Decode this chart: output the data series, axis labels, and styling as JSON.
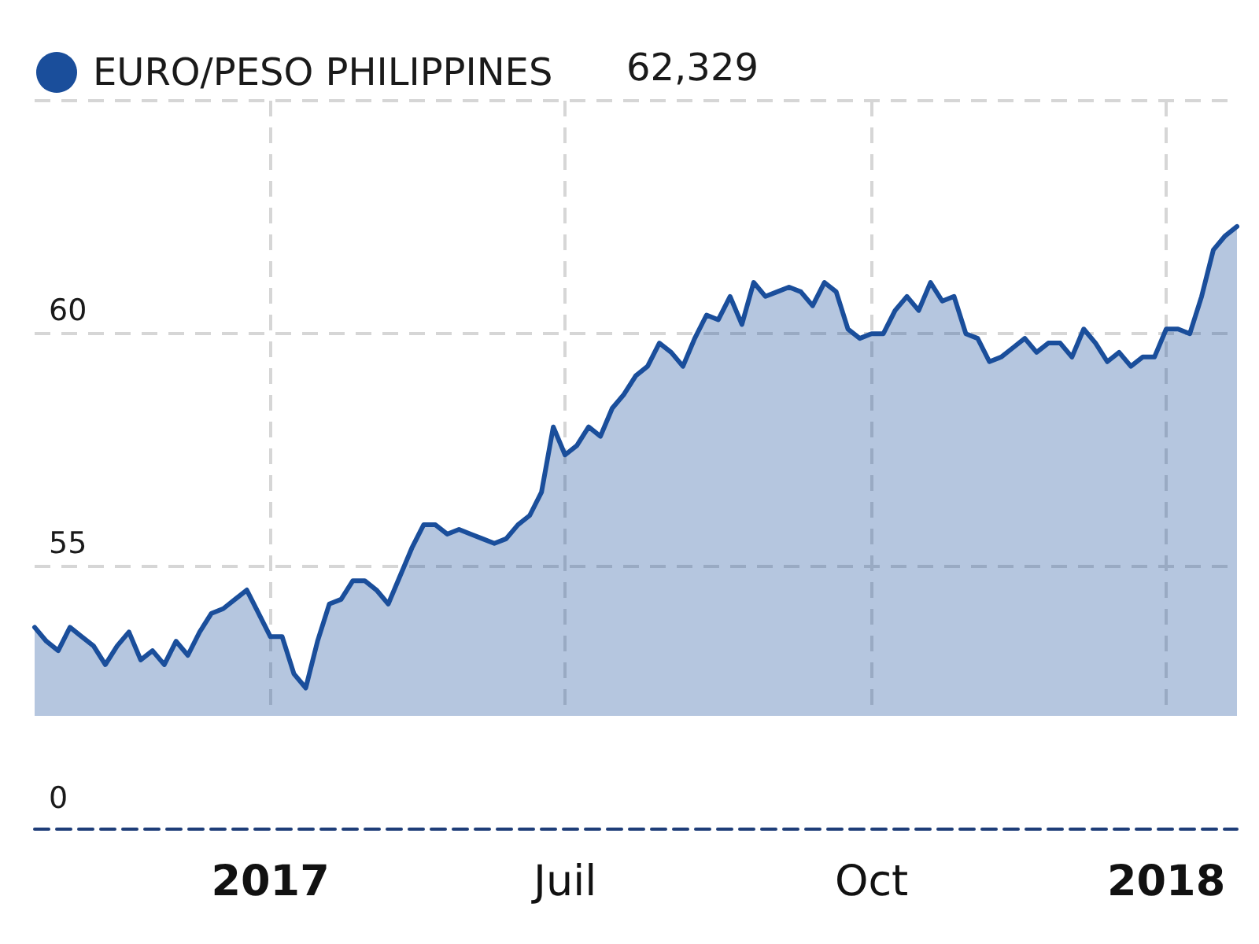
{
  "chart_data": {
    "type": "area",
    "categories": [
      null,
      null,
      null,
      null,
      null,
      null,
      null,
      null,
      null,
      null,
      null,
      null,
      null,
      null,
      null,
      null,
      null,
      null,
      null,
      null,
      "2017",
      null,
      null,
      null,
      null,
      null,
      null,
      null,
      null,
      null,
      null,
      null,
      null,
      null,
      null,
      null,
      null,
      null,
      null,
      null,
      null,
      null,
      null,
      null,
      null,
      "Juil",
      null,
      null,
      null,
      null,
      null,
      null,
      null,
      null,
      null,
      null,
      null,
      null,
      null,
      null,
      null,
      null,
      null,
      null,
      null,
      null,
      null,
      null,
      null,
      null,
      null,
      "Oct",
      null,
      null,
      null,
      null,
      null,
      null,
      null,
      null,
      null,
      null,
      null,
      null,
      null,
      null,
      null,
      null,
      null,
      null,
      null,
      null,
      null,
      null,
      null,
      null,
      "2018",
      null,
      null,
      null,
      null,
      null,
      null
    ],
    "series": [
      {
        "name": "EURO/PESO PHILIPPINES",
        "color": "#1a4e9b",
        "values": [
          53.7,
          53.4,
          53.2,
          53.7,
          53.5,
          53.3,
          52.9,
          53.3,
          53.6,
          53.0,
          53.2,
          52.9,
          53.4,
          53.1,
          53.6,
          54.0,
          54.1,
          54.3,
          54.5,
          54.0,
          53.5,
          53.5,
          52.7,
          52.4,
          53.4,
          54.2,
          54.3,
          54.7,
          54.7,
          54.5,
          54.2,
          54.8,
          55.4,
          55.9,
          55.9,
          55.7,
          55.8,
          55.7,
          55.6,
          55.5,
          55.6,
          55.9,
          56.1,
          56.6,
          58.0,
          57.4,
          57.6,
          58.0,
          57.8,
          58.4,
          58.7,
          59.1,
          59.3,
          59.8,
          59.6,
          59.3,
          59.9,
          60.4,
          60.3,
          60.8,
          60.2,
          61.1,
          60.8,
          60.9,
          61.0,
          60.9,
          60.6,
          61.1,
          60.9,
          60.1,
          59.9,
          60.0,
          60.0,
          60.5,
          60.8,
          60.5,
          61.1,
          60.7,
          60.8,
          60.0,
          59.9,
          59.4,
          59.5,
          59.7,
          59.9,
          59.6,
          59.8,
          59.8,
          59.5,
          60.1,
          59.8,
          59.4,
          59.6,
          59.3,
          59.5,
          59.5,
          60.1,
          60.1,
          60.0,
          60.8,
          61.8,
          62.1,
          62.3
        ]
      }
    ],
    "ylim": [
      51.8,
      65
    ],
    "yticks": [
      55,
      60,
      {
        "value": 65,
        "label": null
      }
    ],
    "grid": true,
    "legend": "top left",
    "marker": "none",
    "line_style": "solid",
    "annotations": [
      "62,329",
      "0"
    ]
  }
}
